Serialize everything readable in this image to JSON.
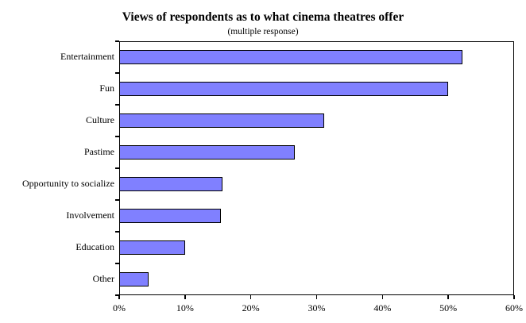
{
  "chart_data": {
    "type": "bar",
    "orientation": "horizontal",
    "title": "Views of respondents as to what cinema theatres offer",
    "subtitle": "(multiple response)",
    "categories": [
      "Entertainment",
      "Fun",
      "Culture",
      "Pastime",
      "Opportunity to socialize",
      "Involvement",
      "Education",
      "Other"
    ],
    "values": [
      52.2,
      50.0,
      31.1,
      26.7,
      15.7,
      15.4,
      10.0,
      4.5
    ],
    "value_unit": "%",
    "xlabel": "",
    "ylabel": "",
    "x_axis": {
      "min": 0,
      "max": 60,
      "step": 10,
      "tick_labels": [
        "0%",
        "10%",
        "20%",
        "30%",
        "40%",
        "50%",
        "60%"
      ]
    },
    "grid": false,
    "legend": false,
    "colors": {
      "bar_fill": "#8080FF",
      "bar_border": "#000000",
      "axis": "#000000",
      "background": "#FFFFFF",
      "text": "#000000"
    }
  }
}
